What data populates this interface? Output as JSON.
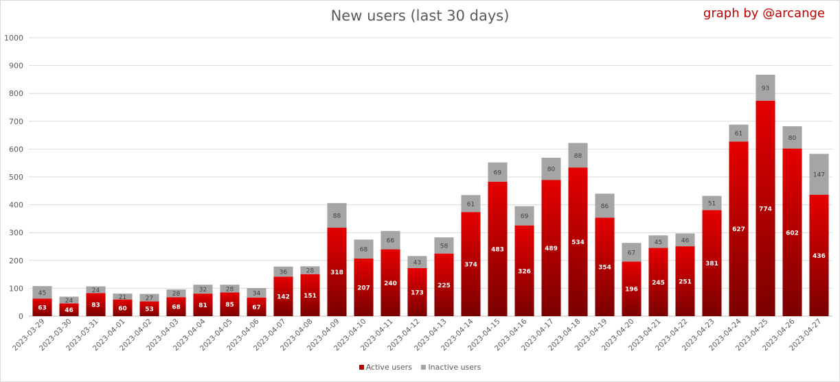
{
  "credit": "graph by @arcange",
  "chart_data": {
    "type": "bar",
    "stacked": true,
    "title": "New users (last 30 days)",
    "xlabel": "",
    "ylabel": "",
    "ylim": [
      0,
      1000
    ],
    "yticks": [
      0,
      100,
      200,
      300,
      400,
      500,
      600,
      700,
      800,
      900,
      1000
    ],
    "grid": true,
    "legend_position": "bottom",
    "categories": [
      "2023-03-29",
      "2023-03-30",
      "2023-03-31",
      "2023-04-01",
      "2023-04-02",
      "2023-04-03",
      "2023-04-04",
      "2023-04-05",
      "2023-04-06",
      "2023-04-07",
      "2023-04-08",
      "2023-04-09",
      "2023-04-10",
      "2023-04-11",
      "2023-04-12",
      "2023-04-13",
      "2023-04-14",
      "2023-04-15",
      "2023-04-16",
      "2023-04-17",
      "2023-04-18",
      "2023-04-19",
      "2023-04-20",
      "2023-04-21",
      "2023-04-22",
      "2023-04-23",
      "2023-04-24",
      "2023-04-25",
      "2023-04-26",
      "2023-04-27"
    ],
    "series": [
      {
        "name": "Active users",
        "color": "#c00000",
        "values": [
          63,
          46,
          83,
          60,
          53,
          68,
          81,
          85,
          67,
          142,
          151,
          318,
          207,
          240,
          173,
          225,
          374,
          483,
          326,
          489,
          534,
          354,
          196,
          245,
          251,
          381,
          627,
          774,
          602,
          436
        ]
      },
      {
        "name": "Inactive users",
        "color": "#a5a5a5",
        "values": [
          45,
          24,
          24,
          21,
          27,
          28,
          32,
          28,
          34,
          36,
          28,
          88,
          68,
          66,
          43,
          58,
          61,
          69,
          69,
          80,
          88,
          86,
          67,
          45,
          46,
          51,
          61,
          93,
          80,
          147
        ]
      }
    ]
  }
}
